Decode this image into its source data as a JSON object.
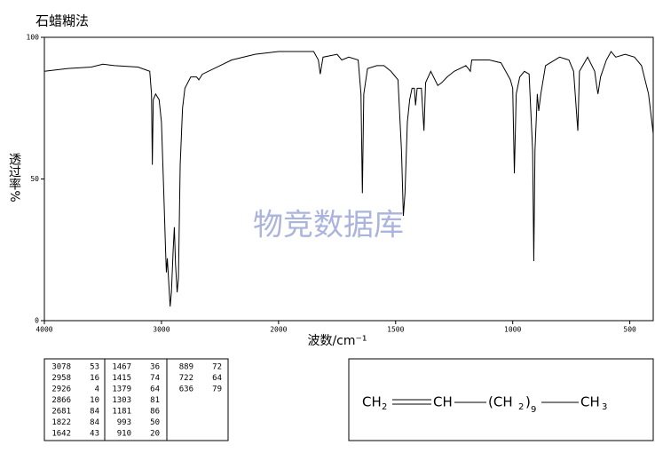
{
  "chart_data": {
    "type": "line",
    "title": "石蜡糊法",
    "x_label": "波数/cm⁻¹",
    "y_label": "透过率%",
    "watermark": "物竞数据库",
    "color": "#000000",
    "xlim": [
      4000,
      400
    ],
    "x_scale_break": 2000,
    "ylim": [
      0,
      100
    ],
    "xticks": [
      4000,
      3000,
      2000,
      1500,
      1000,
      500
    ],
    "yticks": [
      0,
      50,
      100
    ],
    "x": [
      4000,
      3800,
      3600,
      3500,
      3400,
      3200,
      3100,
      3085,
      3078,
      3070,
      3050,
      3020,
      3000,
      2980,
      2965,
      2958,
      2950,
      2940,
      2926,
      2915,
      2900,
      2890,
      2880,
      2866,
      2855,
      2840,
      2820,
      2800,
      2750,
      2700,
      2681,
      2650,
      2500,
      2400,
      2200,
      2000,
      1900,
      1850,
      1830,
      1822,
      1810,
      1750,
      1730,
      1700,
      1660,
      1648,
      1642,
      1636,
      1620,
      1580,
      1550,
      1520,
      1490,
      1475,
      1467,
      1460,
      1450,
      1440,
      1430,
      1420,
      1415,
      1408,
      1390,
      1379,
      1372,
      1350,
      1320,
      1303,
      1280,
      1250,
      1200,
      1190,
      1181,
      1175,
      1100,
      1050,
      1030,
      1010,
      1000,
      993,
      985,
      970,
      950,
      930,
      915,
      910,
      905,
      895,
      889,
      880,
      860,
      800,
      760,
      740,
      722,
      715,
      680,
      650,
      640,
      636,
      625,
      600,
      580,
      560,
      520,
      480,
      450,
      420,
      400
    ],
    "values": [
      88,
      89,
      89.5,
      90.5,
      90,
      89.5,
      88,
      80,
      55,
      78,
      80,
      78,
      70,
      45,
      25,
      17,
      22,
      15,
      5,
      10,
      25,
      33,
      20,
      10,
      15,
      55,
      75,
      82,
      86,
      86,
      85,
      87,
      90,
      92,
      94,
      95,
      95,
      95,
      92,
      87,
      93,
      94,
      92,
      93,
      92,
      80,
      45,
      80,
      89,
      90,
      90,
      88,
      85,
      60,
      37,
      45,
      70,
      78,
      82,
      82,
      76,
      82,
      82,
      67,
      84,
      88,
      83,
      84,
      86,
      88,
      90,
      89,
      88,
      92,
      92,
      91,
      88,
      85,
      82,
      52,
      80,
      86,
      88,
      87,
      60,
      21,
      60,
      80,
      74,
      80,
      90,
      93,
      92,
      88,
      67,
      88,
      93,
      88,
      82,
      80,
      86,
      92,
      95,
      93,
      94,
      93,
      90,
      80,
      66
    ]
  },
  "peak_table": {
    "columns": [
      [
        [
          "3078",
          "53"
        ],
        [
          "2958",
          "16"
        ],
        [
          "2926",
          "4"
        ],
        [
          "2866",
          "10"
        ],
        [
          "2681",
          "84"
        ],
        [
          "1822",
          "84"
        ],
        [
          "1642",
          "43"
        ]
      ],
      [
        [
          "1467",
          "36"
        ],
        [
          "1415",
          "74"
        ],
        [
          "1379",
          "64"
        ],
        [
          "1303",
          "81"
        ],
        [
          "1181",
          "86"
        ],
        [
          "993",
          "50"
        ],
        [
          "910",
          "20"
        ]
      ],
      [
        [
          "889",
          "72"
        ],
        [
          "722",
          "64"
        ],
        [
          "636",
          "79"
        ]
      ]
    ]
  },
  "formula": {
    "parts": [
      "CH",
      "2",
      "CH",
      "(CH",
      "2",
      ")",
      "9",
      "CH",
      "3"
    ]
  }
}
